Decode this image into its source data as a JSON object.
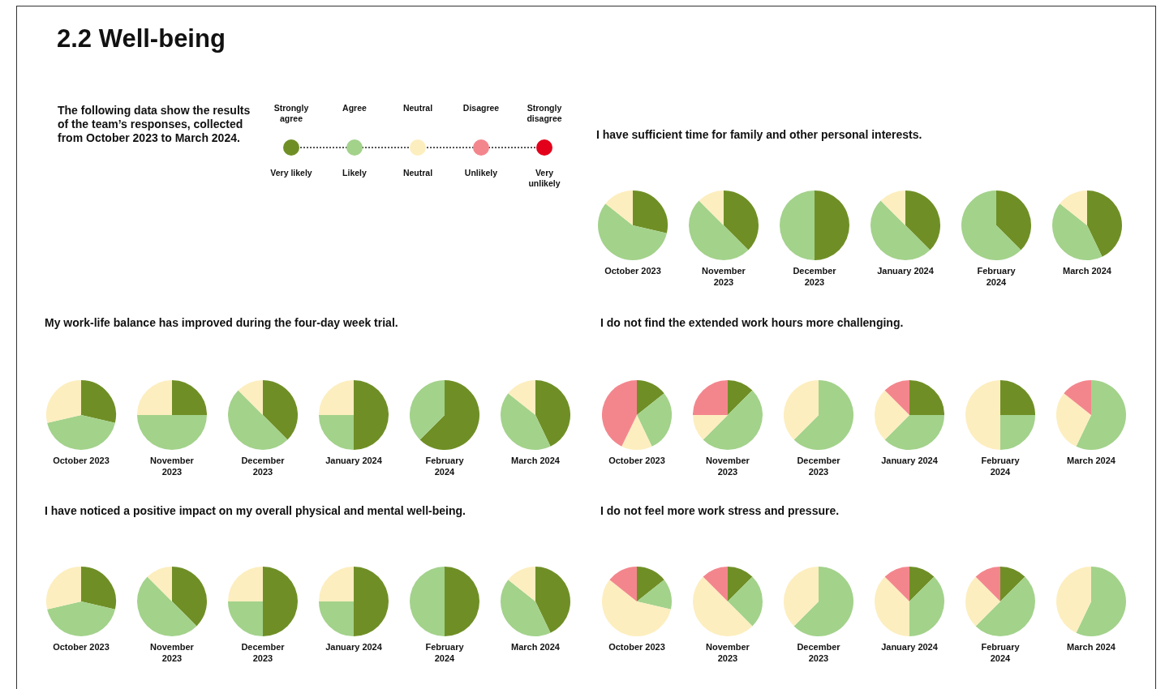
{
  "chart_data": [
    {
      "type": "other",
      "title": "2.2  Well-being",
      "annotations": [
        "The following data show the results of the team’s responses, collected from October 2023 to March 2024.",
        "Strongly agree",
        "Agree",
        "Neutral",
        "Disagree",
        "Strongly disagree",
        "Very likely",
        "Likely",
        "Neutral",
        "Unlikely",
        "Very unlikely"
      ]
    },
    {
      "type": "pie",
      "subtitle": "I have sufficient time for family and other personal interests.",
      "title": "October 2023",
      "categories": [
        null,
        null,
        null,
        null,
        null
      ],
      "values": [
        28.6,
        57.1,
        14.3,
        0,
        0
      ],
      "colors": [
        "#6f8f26",
        "#a3d28b",
        "#fdeebf",
        "#f3868d",
        "#e3001b"
      ]
    },
    {
      "type": "pie",
      "title": "November 2023",
      "categories": [
        null,
        null,
        null,
        null,
        null
      ],
      "values": [
        37.5,
        50,
        12.5,
        0,
        0
      ],
      "colors": [
        "#6f8f26",
        "#a3d28b",
        "#fdeebf",
        "#f3868d",
        "#e3001b"
      ]
    },
    {
      "type": "pie",
      "title": "December 2023",
      "categories": [
        null,
        null,
        null,
        null,
        null
      ],
      "values": [
        50,
        50,
        0,
        0,
        0
      ],
      "colors": [
        "#6f8f26",
        "#a3d28b",
        "#fdeebf",
        "#f3868d",
        "#e3001b"
      ]
    },
    {
      "type": "pie",
      "title": "January 2024",
      "categories": [
        null,
        null,
        null,
        null,
        null
      ],
      "values": [
        37.5,
        50,
        12.5,
        0,
        0
      ],
      "colors": [
        "#6f8f26",
        "#a3d28b",
        "#fdeebf",
        "#f3868d",
        "#e3001b"
      ]
    },
    {
      "type": "pie",
      "title": "February 2024",
      "categories": [
        null,
        null,
        null,
        null,
        null
      ],
      "values": [
        37.5,
        62.5,
        0,
        0,
        0
      ],
      "colors": [
        "#6f8f26",
        "#a3d28b",
        "#fdeebf",
        "#f3868d",
        "#e3001b"
      ]
    },
    {
      "type": "pie",
      "title": "March 2024",
      "categories": [
        null,
        null,
        null,
        null,
        null
      ],
      "values": [
        42.9,
        42.8,
        14.3,
        0,
        0
      ],
      "colors": [
        "#6f8f26",
        "#a3d28b",
        "#fdeebf",
        "#f3868d",
        "#e3001b"
      ]
    },
    {
      "type": "pie",
      "subtitle": "My work-life balance has improved during the four-day week trial.",
      "title": "October 2023",
      "categories": [
        null,
        null,
        null,
        null,
        null
      ],
      "values": [
        28.6,
        42.8,
        28.6,
        0,
        0
      ],
      "colors": [
        "#6f8f26",
        "#a3d28b",
        "#fdeebf",
        "#f3868d",
        "#e3001b"
      ]
    },
    {
      "type": "pie",
      "title": "November 2023",
      "categories": [
        null,
        null,
        null,
        null,
        null
      ],
      "values": [
        25,
        50,
        25,
        0,
        0
      ],
      "colors": [
        "#6f8f26",
        "#a3d28b",
        "#fdeebf",
        "#f3868d",
        "#e3001b"
      ]
    },
    {
      "type": "pie",
      "title": "December 2023",
      "categories": [
        null,
        null,
        null,
        null,
        null
      ],
      "values": [
        37.5,
        50,
        12.5,
        0,
        0
      ],
      "colors": [
        "#6f8f26",
        "#a3d28b",
        "#fdeebf",
        "#f3868d",
        "#e3001b"
      ]
    },
    {
      "type": "pie",
      "title": "January 2024",
      "categories": [
        null,
        null,
        null,
        null,
        null
      ],
      "values": [
        50,
        25,
        25,
        0,
        0
      ],
      "colors": [
        "#6f8f26",
        "#a3d28b",
        "#fdeebf",
        "#f3868d",
        "#e3001b"
      ]
    },
    {
      "type": "pie",
      "title": "February 2024",
      "categories": [
        null,
        null,
        null,
        null,
        null
      ],
      "values": [
        62.5,
        37.5,
        0,
        0,
        0
      ],
      "colors": [
        "#6f8f26",
        "#a3d28b",
        "#fdeebf",
        "#f3868d",
        "#e3001b"
      ]
    },
    {
      "type": "pie",
      "title": "March 2024",
      "categories": [
        null,
        null,
        null,
        null,
        null
      ],
      "values": [
        42.9,
        42.8,
        14.3,
        0,
        0
      ],
      "colors": [
        "#6f8f26",
        "#a3d28b",
        "#fdeebf",
        "#f3868d",
        "#e3001b"
      ]
    },
    {
      "type": "pie",
      "subtitle": "I do not find the extended work hours more challenging.",
      "title": "October 2023",
      "categories": [
        null,
        null,
        null,
        null,
        null
      ],
      "values": [
        14.3,
        28.6,
        14.3,
        42.8,
        0
      ],
      "colors": [
        "#6f8f26",
        "#a3d28b",
        "#fdeebf",
        "#f3868d",
        "#e3001b"
      ]
    },
    {
      "type": "pie",
      "title": "November 2023",
      "categories": [
        null,
        null,
        null,
        null,
        null
      ],
      "values": [
        12.5,
        50,
        12.5,
        25,
        0
      ],
      "colors": [
        "#6f8f26",
        "#a3d28b",
        "#fdeebf",
        "#f3868d",
        "#e3001b"
      ]
    },
    {
      "type": "pie",
      "title": "December 2023",
      "categories": [
        null,
        null,
        null,
        null,
        null
      ],
      "values": [
        0,
        62.5,
        37.5,
        0,
        0
      ],
      "colors": [
        "#6f8f26",
        "#a3d28b",
        "#fdeebf",
        "#f3868d",
        "#e3001b"
      ]
    },
    {
      "type": "pie",
      "title": "January 2024",
      "categories": [
        null,
        null,
        null,
        null,
        null
      ],
      "values": [
        25,
        37.5,
        25,
        12.5,
        0
      ],
      "colors": [
        "#6f8f26",
        "#a3d28b",
        "#fdeebf",
        "#f3868d",
        "#e3001b"
      ]
    },
    {
      "type": "pie",
      "title": "February 2024",
      "categories": [
        null,
        null,
        null,
        null,
        null
      ],
      "values": [
        25,
        25,
        50,
        0,
        0
      ],
      "colors": [
        "#6f8f26",
        "#a3d28b",
        "#fdeebf",
        "#f3868d",
        "#e3001b"
      ]
    },
    {
      "type": "pie",
      "title": "March 2024",
      "categories": [
        null,
        null,
        null,
        null,
        null
      ],
      "values": [
        0,
        57.1,
        28.6,
        14.3,
        0
      ],
      "colors": [
        "#6f8f26",
        "#a3d28b",
        "#fdeebf",
        "#f3868d",
        "#e3001b"
      ]
    },
    {
      "type": "pie",
      "subtitle": "I have noticed a positive impact on my overall physical and mental well-being.",
      "title": "October 2023",
      "categories": [
        null,
        null,
        null,
        null,
        null
      ],
      "values": [
        28.6,
        42.8,
        28.6,
        0,
        0
      ],
      "colors": [
        "#6f8f26",
        "#a3d28b",
        "#fdeebf",
        "#f3868d",
        "#e3001b"
      ]
    },
    {
      "type": "pie",
      "title": "November 2023",
      "categories": [
        null,
        null,
        null,
        null,
        null
      ],
      "values": [
        37.5,
        50,
        12.5,
        0,
        0
      ],
      "colors": [
        "#6f8f26",
        "#a3d28b",
        "#fdeebf",
        "#f3868d",
        "#e3001b"
      ]
    },
    {
      "type": "pie",
      "title": "December 2023",
      "categories": [
        null,
        null,
        null,
        null,
        null
      ],
      "values": [
        50,
        25,
        25,
        0,
        0
      ],
      "colors": [
        "#6f8f26",
        "#a3d28b",
        "#fdeebf",
        "#f3868d",
        "#e3001b"
      ]
    },
    {
      "type": "pie",
      "title": "January 2024",
      "categories": [
        null,
        null,
        null,
        null,
        null
      ],
      "values": [
        50,
        25,
        25,
        0,
        0
      ],
      "colors": [
        "#6f8f26",
        "#a3d28b",
        "#fdeebf",
        "#f3868d",
        "#e3001b"
      ]
    },
    {
      "type": "pie",
      "title": "February 2024",
      "categories": [
        null,
        null,
        null,
        null,
        null
      ],
      "values": [
        50,
        50,
        0,
        0,
        0
      ],
      "colors": [
        "#6f8f26",
        "#a3d28b",
        "#fdeebf",
        "#f3868d",
        "#e3001b"
      ]
    },
    {
      "type": "pie",
      "title": "March 2024",
      "categories": [
        null,
        null,
        null,
        null,
        null
      ],
      "values": [
        42.9,
        42.8,
        14.3,
        0,
        0
      ],
      "colors": [
        "#6f8f26",
        "#a3d28b",
        "#fdeebf",
        "#f3868d",
        "#e3001b"
      ]
    },
    {
      "type": "pie",
      "subtitle": "I do not feel more work stress and pressure.",
      "title": "October 2023",
      "categories": [
        null,
        null,
        null,
        null,
        null
      ],
      "values": [
        14.3,
        14.3,
        57.1,
        14.3,
        0
      ],
      "colors": [
        "#6f8f26",
        "#a3d28b",
        "#fdeebf",
        "#f3868d",
        "#e3001b"
      ]
    },
    {
      "type": "pie",
      "title": "November 2023",
      "categories": [
        null,
        null,
        null,
        null,
        null
      ],
      "values": [
        12.5,
        25,
        50,
        12.5,
        0
      ],
      "colors": [
        "#6f8f26",
        "#a3d28b",
        "#fdeebf",
        "#f3868d",
        "#e3001b"
      ]
    },
    {
      "type": "pie",
      "title": "December 2023",
      "categories": [
        null,
        null,
        null,
        null,
        null
      ],
      "values": [
        0,
        62.5,
        37.5,
        0,
        0
      ],
      "colors": [
        "#6f8f26",
        "#a3d28b",
        "#fdeebf",
        "#f3868d",
        "#e3001b"
      ]
    },
    {
      "type": "pie",
      "title": "January 2024",
      "categories": [
        null,
        null,
        null,
        null,
        null
      ],
      "values": [
        12.5,
        37.5,
        37.5,
        12.5,
        0
      ],
      "colors": [
        "#6f8f26",
        "#a3d28b",
        "#fdeebf",
        "#f3868d",
        "#e3001b"
      ]
    },
    {
      "type": "pie",
      "title": "February 2024",
      "categories": [
        null,
        null,
        null,
        null,
        null
      ],
      "values": [
        12.5,
        50,
        25,
        12.5,
        0
      ],
      "colors": [
        "#6f8f26",
        "#a3d28b",
        "#fdeebf",
        "#f3868d",
        "#e3001b"
      ]
    },
    {
      "type": "pie",
      "title": "March 2024",
      "categories": [
        null,
        null,
        null,
        null,
        null
      ],
      "values": [
        0,
        57.1,
        42.9,
        0,
        0
      ],
      "colors": [
        "#6f8f26",
        "#a3d28b",
        "#fdeebf",
        "#f3868d",
        "#e3001b"
      ]
    }
  ]
}
